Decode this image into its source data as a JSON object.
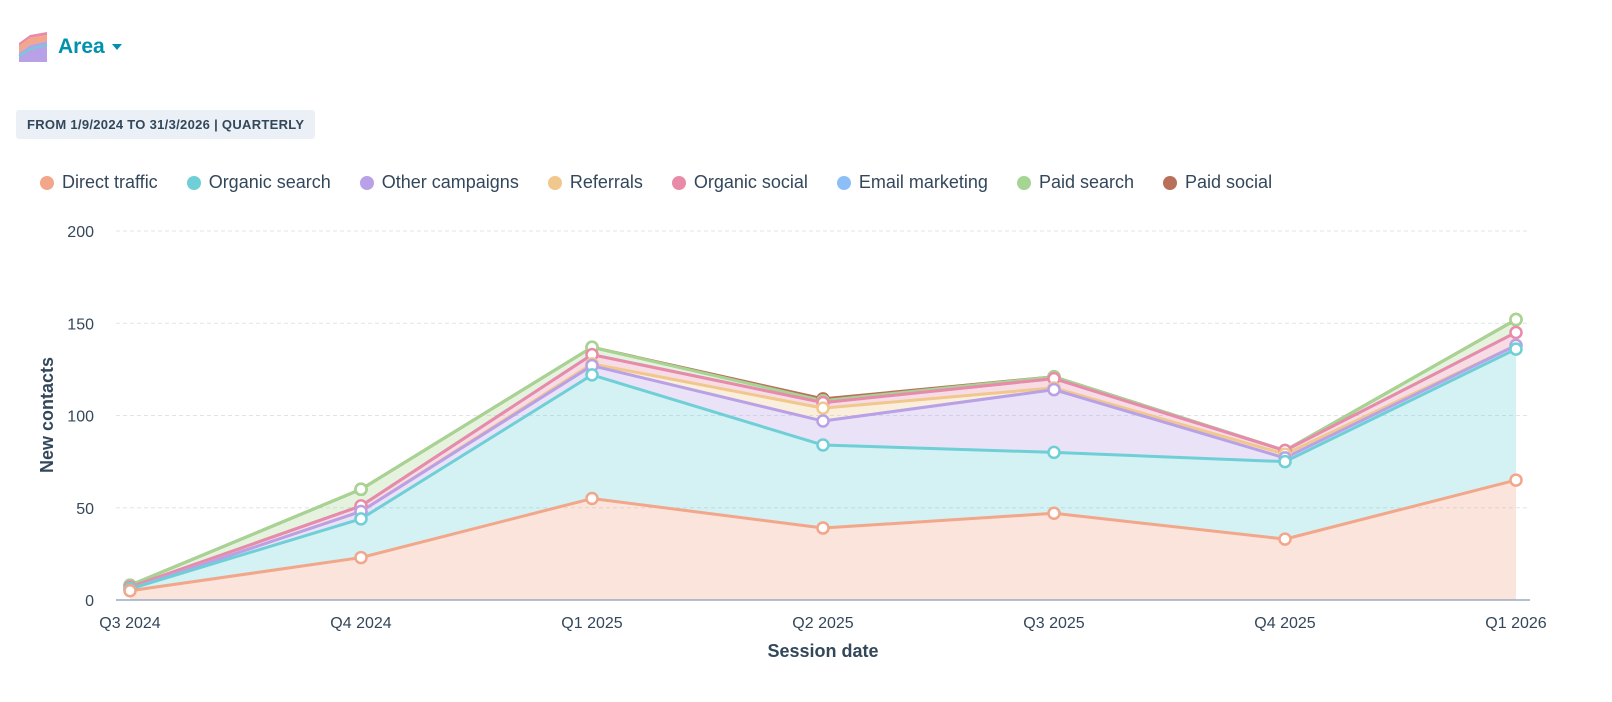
{
  "header": {
    "chart_type_label": "Area",
    "chart_type_icon": "area-chart-icon",
    "dropdown_icon": "caret-down-icon"
  },
  "filter": {
    "range_label": "FROM 1/9/2024 TO 31/3/2026 | QUARTERLY"
  },
  "colors": {
    "accent": "#0091ae",
    "text": "#33475b",
    "grid": "#dfe3eb",
    "baseline": "#99acc2"
  },
  "chart_data": {
    "type": "area",
    "stacked": true,
    "title": "",
    "xlabel": "Session date",
    "ylabel": "New contacts",
    "ylim": [
      0,
      200
    ],
    "yticks": [
      0,
      50,
      100,
      150,
      200
    ],
    "grid": true,
    "legend_position": "top-left",
    "categories": [
      "Q3 2024",
      "Q4 2024",
      "Q1 2025",
      "Q2 2025",
      "Q3 2025",
      "Q4 2025",
      "Q1 2026"
    ],
    "series": [
      {
        "name": "Direct traffic",
        "color": "#f2a68a",
        "values": [
          5,
          23,
          55,
          39,
          47,
          33,
          65
        ]
      },
      {
        "name": "Organic search",
        "color": "#6fcfd6",
        "values": [
          1,
          21,
          67,
          45,
          33,
          42,
          71
        ]
      },
      {
        "name": "Other campaigns",
        "color": "#b8a1e6",
        "values": [
          0,
          4,
          5,
          13,
          34,
          2,
          2
        ]
      },
      {
        "name": "Referrals",
        "color": "#f0c78c",
        "values": [
          0,
          0,
          1,
          7,
          1,
          2,
          0
        ]
      },
      {
        "name": "Organic social",
        "color": "#e98ba8",
        "values": [
          1,
          3,
          5,
          3,
          5,
          2,
          7
        ]
      },
      {
        "name": "Email marketing",
        "color": "#8ebef8",
        "values": [
          0,
          0,
          0,
          0,
          0,
          0,
          0
        ]
      },
      {
        "name": "Paid search",
        "color": "#a6d492",
        "values": [
          1,
          9,
          4,
          1,
          1,
          0,
          7
        ]
      },
      {
        "name": "Paid social",
        "color": "#b8705a",
        "values": [
          0,
          0,
          0,
          1,
          0,
          0,
          0
        ]
      }
    ]
  }
}
